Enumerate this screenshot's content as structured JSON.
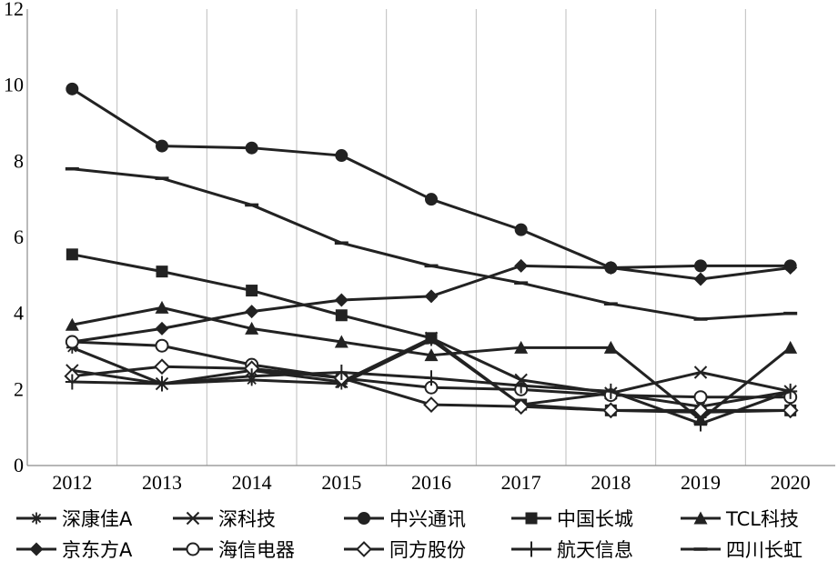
{
  "chart_data": {
    "type": "line",
    "title": "",
    "xlabel": "",
    "ylabel": "",
    "categories": [
      "2012",
      "2013",
      "2014",
      "2015",
      "2016",
      "2017",
      "2018",
      "2019",
      "2020"
    ],
    "ylim": [
      0,
      12
    ],
    "yticks": [
      "0",
      "2",
      "4",
      "6",
      "8",
      "10",
      "12"
    ],
    "grid": "vertical",
    "legend_position": "bottom",
    "series_color": "#222222",
    "series": [
      {
        "name": "深康佳A",
        "marker": "asterisk",
        "values": [
          3.1,
          2.15,
          2.25,
          2.15,
          3.3,
          1.6,
          1.9,
          1.55,
          1.95
        ]
      },
      {
        "name": "深科技",
        "marker": "x",
        "values": [
          2.5,
          2.15,
          2.5,
          2.2,
          3.35,
          2.25,
          1.9,
          2.45,
          1.95
        ]
      },
      {
        "name": "中兴通讯",
        "marker": "circle-filled",
        "values": [
          9.9,
          8.4,
          8.35,
          8.15,
          7.0,
          6.2,
          5.2,
          5.25,
          5.25
        ]
      },
      {
        "name": "中国长城",
        "marker": "square-filled",
        "values": [
          5.55,
          5.1,
          4.6,
          3.95,
          3.35,
          1.6,
          1.45,
          1.4,
          1.45
        ]
      },
      {
        "name": "TCL科技",
        "marker": "triangle-filled",
        "values": [
          3.7,
          4.15,
          3.6,
          3.25,
          2.9,
          3.1,
          3.1,
          1.2,
          3.1
        ]
      },
      {
        "name": "京东方A",
        "marker": "diamond-filled",
        "values": [
          3.25,
          3.6,
          4.05,
          4.35,
          4.45,
          5.25,
          5.2,
          4.9,
          5.2
        ]
      },
      {
        "name": "海信电器",
        "marker": "circle-open",
        "values": [
          3.25,
          3.15,
          2.65,
          2.3,
          2.05,
          2.0,
          1.85,
          1.8,
          1.8
        ]
      },
      {
        "name": "同方股份",
        "marker": "diamond-open",
        "values": [
          2.35,
          2.6,
          2.55,
          2.3,
          1.6,
          1.55,
          1.45,
          1.45,
          1.45
        ]
      },
      {
        "name": "航天信息",
        "marker": "plus",
        "values": [
          2.2,
          2.15,
          2.35,
          2.45,
          2.3,
          2.1,
          1.95,
          1.1,
          1.95
        ]
      },
      {
        "name": "四川长虹",
        "marker": "dash",
        "values": [
          7.8,
          7.55,
          6.85,
          5.85,
          5.25,
          4.8,
          4.25,
          3.85,
          4.0
        ]
      }
    ]
  }
}
